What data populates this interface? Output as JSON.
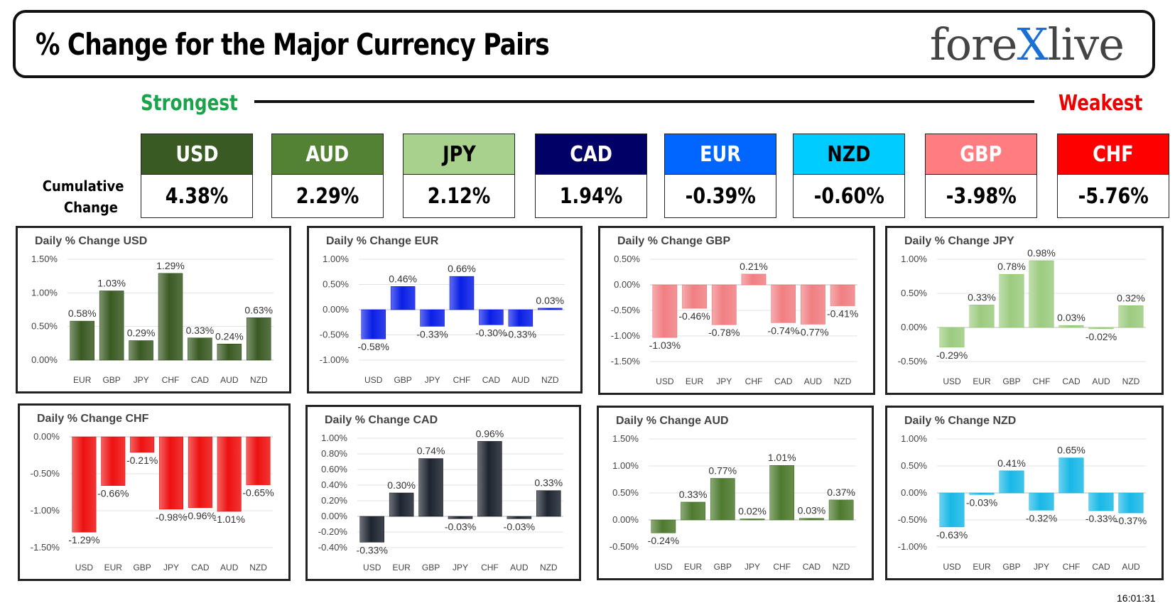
{
  "header": {
    "title": "% Change for the Major Currency Pairs",
    "logo_left": "fore",
    "logo_x": "X",
    "logo_right": "live"
  },
  "scale": {
    "strongest": "Strongest",
    "weakest": "Weakest"
  },
  "cumulative_label_1": "Cumulative",
  "cumulative_label_2": "Change",
  "currencies": [
    {
      "code": "USD",
      "value": "4.38%",
      "bg": "#3a5a23",
      "fg": "#ffffff"
    },
    {
      "code": "AUD",
      "value": "2.29%",
      "bg": "#548235",
      "fg": "#ffffff"
    },
    {
      "code": "JPY",
      "value": "2.12%",
      "bg": "#a9d18e",
      "fg": "#000000"
    },
    {
      "code": "CAD",
      "value": "1.94%",
      "bg": "#000066",
      "fg": "#ffffff"
    },
    {
      "code": "EUR",
      "value": "-0.39%",
      "bg": "#0066ff",
      "fg": "#ffffff"
    },
    {
      "code": "NZD",
      "value": "-0.60%",
      "bg": "#00ccff",
      "fg": "#000000"
    },
    {
      "code": "GBP",
      "value": "-3.98%",
      "bg": "#ff7c80",
      "fg": "#ffffff"
    },
    {
      "code": "CHF",
      "value": "-5.76%",
      "bg": "#ff0000",
      "fg": "#ffffff"
    }
  ],
  "timestamp": "16:01:31",
  "chart_data": [
    {
      "type": "bar",
      "title": "Daily % Change USD",
      "categories": [
        "EUR",
        "GBP",
        "JPY",
        "CHF",
        "CAD",
        "AUD",
        "NZD"
      ],
      "values": [
        0.58,
        1.03,
        0.29,
        1.29,
        0.33,
        0.24,
        0.63
      ],
      "labels": [
        "0.58%",
        "1.03%",
        "0.29%",
        "1.29%",
        "0.33%",
        "0.24%",
        "0.63%"
      ],
      "ylim": [
        0,
        1.5
      ],
      "yticks": [
        "0.00%",
        "0.50%",
        "1.00%",
        "1.50%"
      ],
      "color": "#3a5a23"
    },
    {
      "type": "bar",
      "title": "Daily % Change EUR",
      "categories": [
        "USD",
        "GBP",
        "JPY",
        "CHF",
        "CAD",
        "AUD",
        "NZD"
      ],
      "values": [
        -0.58,
        0.46,
        -0.33,
        0.66,
        -0.3,
        -0.33,
        0.03
      ],
      "labels": [
        "-0.58%",
        "0.46%",
        "-0.33%",
        "0.66%",
        "-0.30%",
        "-0.33%",
        "0.03%"
      ],
      "ylim": [
        -1,
        1
      ],
      "yticks": [
        "-1.00%",
        "-0.50%",
        "0.00%",
        "0.50%",
        "1.00%"
      ],
      "color": "#0a1fe6"
    },
    {
      "type": "bar",
      "title": "Daily % Change GBP",
      "categories": [
        "USD",
        "EUR",
        "JPY",
        "CHF",
        "CAD",
        "AUD",
        "NZD"
      ],
      "values": [
        -1.03,
        -0.46,
        -0.78,
        0.21,
        -0.74,
        -0.77,
        -0.41
      ],
      "labels": [
        "-1.03%",
        "-0.46%",
        "-0.78%",
        "0.21%",
        "-0.74%",
        "-0.77%",
        "-0.41%"
      ],
      "ylim": [
        -1.5,
        0.5
      ],
      "yticks": [
        "-1.50%",
        "-1.00%",
        "-0.50%",
        "0.00%",
        "0.50%"
      ],
      "color": "#f07f82"
    },
    {
      "type": "bar",
      "title": "Daily % Change JPY",
      "categories": [
        "USD",
        "EUR",
        "GBP",
        "CHF",
        "CAD",
        "AUD",
        "NZD"
      ],
      "values": [
        -0.29,
        0.33,
        0.78,
        0.98,
        0.03,
        -0.02,
        0.32
      ],
      "labels": [
        "-0.29%",
        "0.33%",
        "0.78%",
        "0.98%",
        "0.03%",
        "-0.02%",
        "0.32%"
      ],
      "ylim": [
        -0.5,
        1
      ],
      "yticks": [
        "-0.50%",
        "0.00%",
        "0.50%",
        "1.00%"
      ],
      "color": "#9ccb80"
    },
    {
      "type": "bar",
      "title": "Daily % Change CHF",
      "categories": [
        "USD",
        "EUR",
        "GBP",
        "JPY",
        "CAD",
        "AUD",
        "NZD"
      ],
      "values": [
        -1.29,
        -0.66,
        -0.21,
        -0.98,
        -0.96,
        -1.01,
        -0.65
      ],
      "labels": [
        "-1.29%",
        "-0.66%",
        "-0.21%",
        "-0.98%",
        "-0.96%",
        "-1.01%",
        "-0.65%"
      ],
      "ylim": [
        -1.5,
        0
      ],
      "yticks": [
        "-1.50%",
        "-1.00%",
        "-0.50%",
        "0.00%"
      ],
      "color": "#ee1111"
    },
    {
      "type": "bar",
      "title": "Daily % Change CAD",
      "categories": [
        "USD",
        "EUR",
        "GBP",
        "JPY",
        "CHF",
        "AUD",
        "NZD"
      ],
      "values": [
        -0.33,
        0.3,
        0.74,
        -0.03,
        0.96,
        -0.03,
        0.33
      ],
      "labels": [
        "-0.33%",
        "0.30%",
        "0.74%",
        "-0.03%",
        "0.96%",
        "-0.03%",
        "0.33%"
      ],
      "ylim": [
        -0.4,
        1
      ],
      "yticks": [
        "-0.40%",
        "-0.20%",
        "0.00%",
        "0.20%",
        "0.40%",
        "0.60%",
        "0.80%",
        "1.00%"
      ],
      "color": "#1e2530"
    },
    {
      "type": "bar",
      "title": "Daily % Change AUD",
      "categories": [
        "USD",
        "EUR",
        "GBP",
        "JPY",
        "CHF",
        "CAD",
        "NZD"
      ],
      "values": [
        -0.24,
        0.33,
        0.77,
        0.02,
        1.01,
        0.03,
        0.37
      ],
      "labels": [
        "-0.24%",
        "0.33%",
        "0.77%",
        "0.02%",
        "1.01%",
        "0.03%",
        "0.37%"
      ],
      "ylim": [
        -0.5,
        1.5
      ],
      "yticks": [
        "-0.50%",
        "0.00%",
        "0.50%",
        "1.00%",
        "1.50%"
      ],
      "color": "#4e7a2f"
    },
    {
      "type": "bar",
      "title": "Daily % Change NZD",
      "categories": [
        "USD",
        "EUR",
        "GBP",
        "JPY",
        "CHF",
        "CAD",
        "AUD"
      ],
      "values": [
        -0.63,
        -0.03,
        0.41,
        -0.32,
        0.65,
        -0.33,
        -0.37
      ],
      "labels": [
        "-0.63%",
        "-0.03%",
        "0.41%",
        "-0.32%",
        "0.65%",
        "-0.33%",
        "-0.37%"
      ],
      "ylim": [
        -1,
        1
      ],
      "yticks": [
        "-1.00%",
        "-0.50%",
        "0.00%",
        "0.50%",
        "1.00%"
      ],
      "color": "#19b8e6"
    }
  ]
}
